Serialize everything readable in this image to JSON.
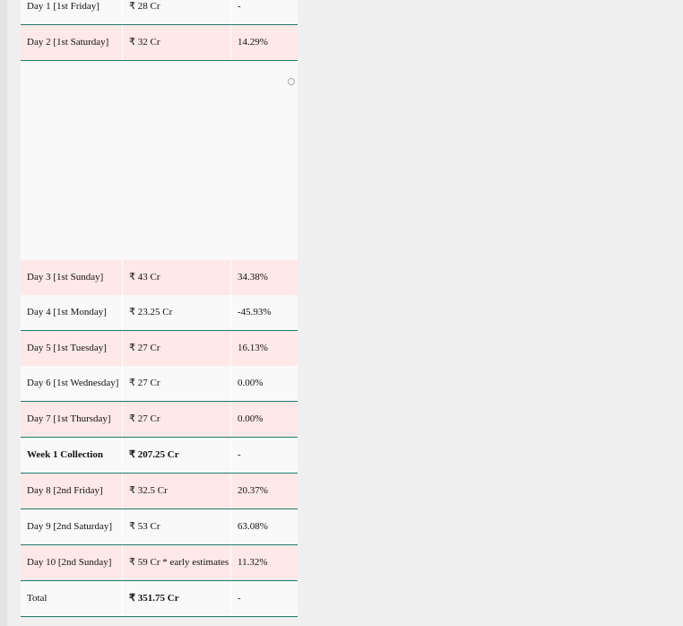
{
  "table": {
    "rows": [
      [
        "Day 1 [1st Friday]",
        "₹ 28 Cr",
        "-"
      ],
      [
        "Day 2 [1st Saturday]",
        "₹ 32 Cr",
        "14.29%"
      ],
      [
        "Day 3 [1st Sunday]",
        "₹ 43 Cr",
        "34.38%"
      ],
      [
        "Day 4 [1st Monday]",
        "₹ 23.25 Cr",
        "-45.93%"
      ],
      [
        "Day 5 [1st Tuesday]",
        "₹ 27 Cr",
        "16.13%"
      ],
      [
        "Day 6 [1st Wednesday]",
        "₹ 27 Cr",
        "0.00%"
      ],
      [
        "Day 7 [1st Thursday]",
        "₹ 27 Cr",
        "0.00%"
      ],
      [
        "Week 1 Collection",
        "₹ 207.25 Cr",
        "-"
      ],
      [
        "Day 8 [2nd Friday]",
        "₹ 32.5 Cr",
        "20.37%"
      ],
      [
        "Day 9 [2nd Saturday]",
        "₹ 53 Cr",
        "63.08%"
      ],
      [
        "Day 10 [2nd Sunday]",
        "₹ 59 Cr * early estimates",
        "11.32%"
      ],
      [
        "Total",
        "₹ 351.75 Cr",
        "-"
      ]
    ]
  }
}
